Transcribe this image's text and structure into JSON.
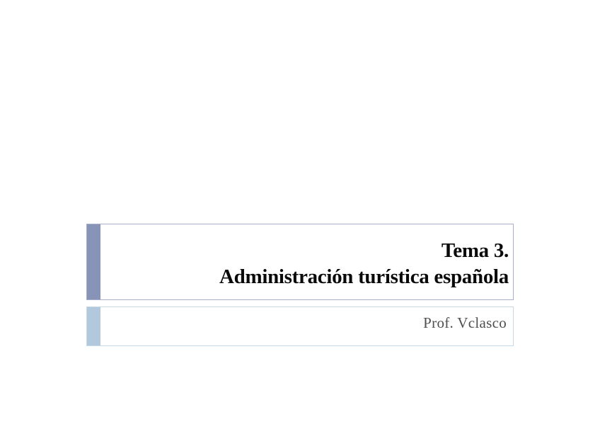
{
  "slide": {
    "title": {
      "line1": "Tema 3.",
      "line2": "Administración turística española"
    },
    "subtitle": "Prof. Vclasco",
    "colors": {
      "title_bar": "#8793b7",
      "title_border": "#a9aecb",
      "subtitle_bar": "#b2c8dc",
      "subtitle_border": "#c7d8e6",
      "title_text": "#0a0a0a",
      "subtitle_text": "#4f4f4f",
      "slide_bg": "#ffffff"
    }
  }
}
